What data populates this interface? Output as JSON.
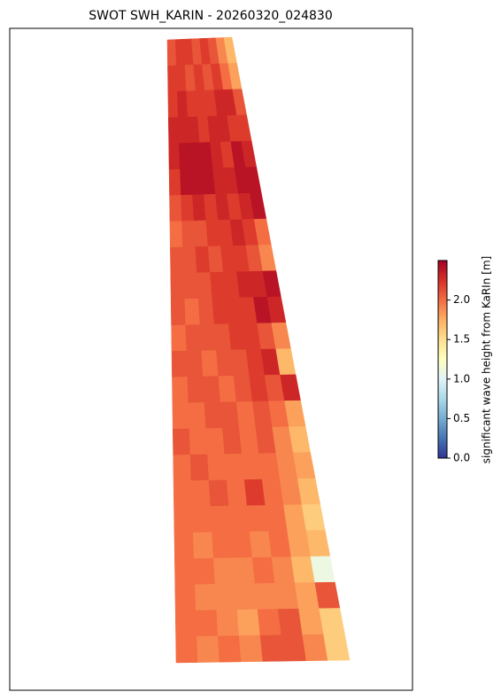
{
  "chart_data": {
    "type": "heatmap",
    "title": "SWOT SWH_KARIN - 20260320_024830",
    "colorbar_label": "significant wave height from KaRIn [m]",
    "colormap": [
      "#313695",
      "#4575b4",
      "#74add1",
      "#abd9e9",
      "#e0f3f8",
      "#ffffbf",
      "#fee090",
      "#fdae61",
      "#f46d43",
      "#d73027",
      "#a50026"
    ],
    "zlim": [
      0,
      2.5
    ],
    "zticks": [
      {
        "value": 0,
        "label": "0.0"
      },
      {
        "value": 0.5,
        "label": "0.5"
      },
      {
        "value": 1,
        "label": "1.0"
      },
      {
        "value": 1.5,
        "label": "1.5"
      },
      {
        "value": 2,
        "label": "2.0"
      }
    ],
    "z": [
      [
        2.1,
        2.2,
        2.2,
        2.1,
        2.2,
        2.1,
        1.9,
        1.7
      ],
      [
        2.2,
        2.2,
        2.1,
        2.2,
        2.1,
        2.2,
        2.0,
        1.8
      ],
      [
        2.2,
        2.3,
        2.2,
        2.2,
        2.2,
        2.3,
        2.3,
        2.1
      ],
      [
        2.3,
        2.3,
        2.3,
        2.2,
        2.3,
        2.3,
        2.2,
        2.2
      ],
      [
        2.3,
        2.4,
        2.4,
        2.4,
        2.3,
        2.2,
        2.4,
        2.3
      ],
      [
        2.2,
        2.4,
        2.4,
        2.4,
        2.3,
        2.3,
        2.4,
        2.4
      ],
      [
        2.1,
        2.2,
        2.3,
        2.2,
        2.3,
        2.2,
        2.3,
        2.4
      ],
      [
        2.0,
        2.1,
        2.1,
        2.2,
        2.2,
        2.3,
        2.2,
        2.0
      ],
      [
        2.1,
        2.1,
        2.2,
        2.1,
        2.2,
        2.2,
        2.1,
        1.9
      ],
      [
        2.1,
        2.1,
        2.1,
        2.2,
        2.2,
        2.3,
        2.3,
        2.4
      ],
      [
        2.1,
        2.0,
        2.1,
        2.2,
        2.2,
        2.2,
        2.4,
        2.3
      ],
      [
        2.0,
        2.1,
        2.1,
        2.1,
        2.2,
        2.2,
        2.1,
        1.9
      ],
      [
        2.1,
        2.1,
        2.0,
        2.1,
        2.1,
        2.2,
        2.3,
        1.7
      ],
      [
        2.0,
        2.1,
        2.1,
        2.0,
        2.1,
        2.2,
        2.1,
        2.3
      ],
      [
        2.0,
        2.0,
        2.1,
        2.1,
        2.0,
        2.1,
        2.0,
        1.8
      ],
      [
        2.1,
        2.0,
        2.0,
        2.1,
        2.0,
        2.1,
        1.9,
        1.7
      ],
      [
        2.0,
        2.1,
        2.0,
        2.0,
        2.0,
        2.0,
        1.9,
        1.8
      ],
      [
        2.0,
        2.0,
        2.1,
        2.0,
        2.2,
        2.0,
        1.9,
        1.7
      ],
      [
        2.0,
        2.0,
        2.0,
        2.0,
        2.0,
        2.0,
        1.8,
        1.6
      ],
      [
        2.0,
        1.9,
        2.0,
        2.0,
        1.9,
        2.0,
        1.8,
        1.7
      ],
      [
        2.0,
        2.0,
        1.9,
        1.9,
        2.0,
        1.9,
        1.7,
        1.1
      ],
      [
        2.0,
        1.9,
        1.9,
        1.9,
        1.9,
        1.9,
        1.8,
        2.1
      ],
      [
        2.0,
        2.0,
        1.9,
        1.8,
        2.0,
        2.1,
        1.8,
        1.6
      ],
      [
        2.0,
        1.9,
        2.0,
        1.9,
        2.1,
        2.1,
        1.9,
        1.6
      ]
    ]
  }
}
